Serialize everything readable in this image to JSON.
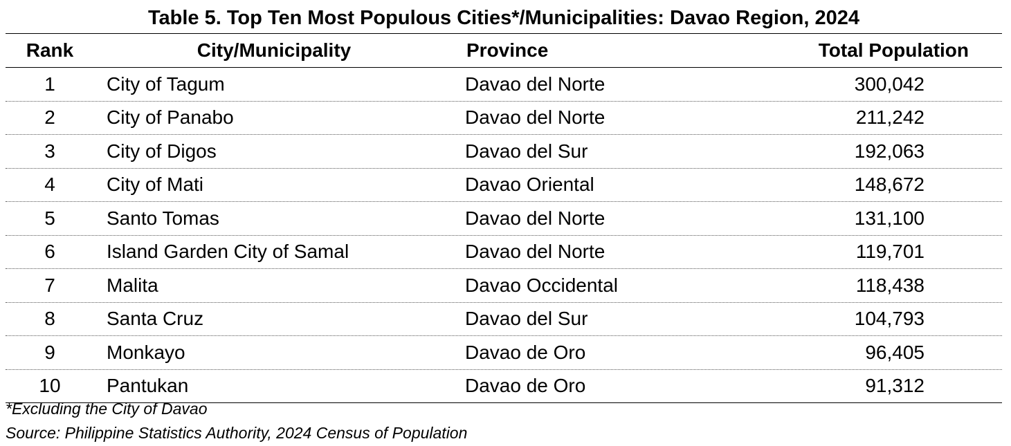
{
  "title": "Table 5. Top Ten Most Populous Cities*/Municipalities: Davao Region, 2024",
  "columns": {
    "rank": "Rank",
    "city": "City/Municipality",
    "province": "Province",
    "population": "Total Population"
  },
  "rows": [
    {
      "rank": "1",
      "city": "City of Tagum",
      "province": "Davao del Norte",
      "population": "300,042"
    },
    {
      "rank": "2",
      "city": "City of Panabo",
      "province": "Davao del Norte",
      "population": "211,242"
    },
    {
      "rank": "3",
      "city": "City of Digos",
      "province": "Davao del Sur",
      "population": "192,063"
    },
    {
      "rank": "4",
      "city": "City of Mati",
      "province": "Davao Oriental",
      "population": "148,672"
    },
    {
      "rank": "5",
      "city": "Santo Tomas",
      "province": "Davao del Norte",
      "population": "131,100"
    },
    {
      "rank": "6",
      "city": "Island Garden City of Samal",
      "province": "Davao del Norte",
      "population": "119,701"
    },
    {
      "rank": "7",
      "city": "Malita",
      "province": "Davao Occidental",
      "population": "118,438"
    },
    {
      "rank": "8",
      "city": "Santa Cruz",
      "province": "Davao del Sur",
      "population": "104,793"
    },
    {
      "rank": "9",
      "city": "Monkayo",
      "province": "Davao de Oro",
      "population": "96,405"
    },
    {
      "rank": "10",
      "city": "Pantukan",
      "province": "Davao de Oro",
      "population": "91,312"
    }
  ],
  "footnotes": {
    "note": "*Excluding the City of Davao",
    "source": "Source: Philippine Statistics Authority, 2024 Census of Population"
  }
}
